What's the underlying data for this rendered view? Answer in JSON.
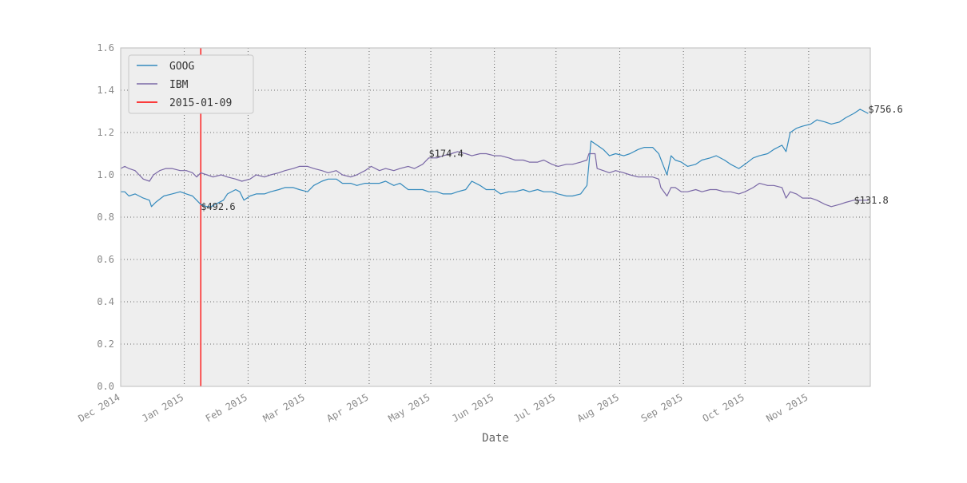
{
  "chart_data": {
    "type": "line",
    "title": "",
    "xlabel": "Date",
    "ylabel": "",
    "ylim": [
      0.0,
      1.6
    ],
    "xlim": [
      "2014-12-01",
      "2015-12-01"
    ],
    "grid": true,
    "legend_position": "top-left",
    "yticks": [
      "0.0",
      "0.2",
      "0.4",
      "0.6",
      "0.8",
      "1.0",
      "1.2",
      "1.4",
      "1.6"
    ],
    "xticks": [
      {
        "date": "2014-12-01",
        "label": "Dec 2014"
      },
      {
        "date": "2015-01-01",
        "label": "Jan 2015"
      },
      {
        "date": "2015-02-01",
        "label": "Feb 2015"
      },
      {
        "date": "2015-03-01",
        "label": "Mar 2015"
      },
      {
        "date": "2015-04-01",
        "label": "Apr 2015"
      },
      {
        "date": "2015-05-01",
        "label": "May 2015"
      },
      {
        "date": "2015-06-01",
        "label": "Jun 2015"
      },
      {
        "date": "2015-07-01",
        "label": "Jul 2015"
      },
      {
        "date": "2015-08-01",
        "label": "Aug 2015"
      },
      {
        "date": "2015-09-01",
        "label": "Sep 2015"
      },
      {
        "date": "2015-10-01",
        "label": "Oct 2015"
      },
      {
        "date": "2015-11-01",
        "label": "Nov 2015"
      }
    ],
    "series": [
      {
        "name": "GOOG",
        "color": "#348abd",
        "points": [
          [
            "2014-12-01",
            0.92
          ],
          [
            "2014-12-03",
            0.92
          ],
          [
            "2014-12-05",
            0.9
          ],
          [
            "2014-12-08",
            0.91
          ],
          [
            "2014-12-10",
            0.9
          ],
          [
            "2014-12-12",
            0.89
          ],
          [
            "2014-12-15",
            0.88
          ],
          [
            "2014-12-16",
            0.85
          ],
          [
            "2014-12-18",
            0.87
          ],
          [
            "2014-12-22",
            0.9
          ],
          [
            "2014-12-26",
            0.91
          ],
          [
            "2014-12-30",
            0.92
          ],
          [
            "2015-01-02",
            0.91
          ],
          [
            "2015-01-05",
            0.9
          ],
          [
            "2015-01-07",
            0.88
          ],
          [
            "2015-01-09",
            0.86
          ],
          [
            "2015-01-12",
            0.85
          ],
          [
            "2015-01-14",
            0.85
          ],
          [
            "2015-01-16",
            0.86
          ],
          [
            "2015-01-20",
            0.88
          ],
          [
            "2015-01-22",
            0.91
          ],
          [
            "2015-01-26",
            0.93
          ],
          [
            "2015-01-28",
            0.92
          ],
          [
            "2015-01-30",
            0.88
          ],
          [
            "2015-02-02",
            0.9
          ],
          [
            "2015-02-05",
            0.91
          ],
          [
            "2015-02-09",
            0.91
          ],
          [
            "2015-02-12",
            0.92
          ],
          [
            "2015-02-16",
            0.93
          ],
          [
            "2015-02-19",
            0.94
          ],
          [
            "2015-02-23",
            0.94
          ],
          [
            "2015-02-26",
            0.93
          ],
          [
            "2015-03-02",
            0.92
          ],
          [
            "2015-03-05",
            0.95
          ],
          [
            "2015-03-09",
            0.97
          ],
          [
            "2015-03-12",
            0.98
          ],
          [
            "2015-03-16",
            0.98
          ],
          [
            "2015-03-19",
            0.96
          ],
          [
            "2015-03-23",
            0.96
          ],
          [
            "2015-03-26",
            0.95
          ],
          [
            "2015-03-30",
            0.96
          ],
          [
            "2015-04-02",
            0.96
          ],
          [
            "2015-04-06",
            0.96
          ],
          [
            "2015-04-09",
            0.97
          ],
          [
            "2015-04-13",
            0.95
          ],
          [
            "2015-04-16",
            0.96
          ],
          [
            "2015-04-20",
            0.93
          ],
          [
            "2015-04-23",
            0.93
          ],
          [
            "2015-04-27",
            0.93
          ],
          [
            "2015-04-30",
            0.92
          ],
          [
            "2015-05-04",
            0.92
          ],
          [
            "2015-05-07",
            0.91
          ],
          [
            "2015-05-11",
            0.91
          ],
          [
            "2015-05-14",
            0.92
          ],
          [
            "2015-05-18",
            0.93
          ],
          [
            "2015-05-21",
            0.97
          ],
          [
            "2015-05-25",
            0.95
          ],
          [
            "2015-05-28",
            0.93
          ],
          [
            "2015-06-01",
            0.93
          ],
          [
            "2015-06-04",
            0.91
          ],
          [
            "2015-06-08",
            0.92
          ],
          [
            "2015-06-11",
            0.92
          ],
          [
            "2015-06-15",
            0.93
          ],
          [
            "2015-06-18",
            0.92
          ],
          [
            "2015-06-22",
            0.93
          ],
          [
            "2015-06-25",
            0.92
          ],
          [
            "2015-06-29",
            0.92
          ],
          [
            "2015-07-02",
            0.91
          ],
          [
            "2015-07-06",
            0.9
          ],
          [
            "2015-07-09",
            0.9
          ],
          [
            "2015-07-13",
            0.91
          ],
          [
            "2015-07-16",
            0.95
          ],
          [
            "2015-07-17",
            1.05
          ],
          [
            "2015-07-18",
            1.16
          ],
          [
            "2015-07-21",
            1.14
          ],
          [
            "2015-07-24",
            1.12
          ],
          [
            "2015-07-27",
            1.09
          ],
          [
            "2015-07-30",
            1.1
          ],
          [
            "2015-08-03",
            1.09
          ],
          [
            "2015-08-06",
            1.1
          ],
          [
            "2015-08-10",
            1.12
          ],
          [
            "2015-08-13",
            1.13
          ],
          [
            "2015-08-17",
            1.13
          ],
          [
            "2015-08-20",
            1.1
          ],
          [
            "2015-08-22",
            1.05
          ],
          [
            "2015-08-24",
            1.0
          ],
          [
            "2015-08-26",
            1.09
          ],
          [
            "2015-08-28",
            1.07
          ],
          [
            "2015-08-31",
            1.06
          ],
          [
            "2015-09-03",
            1.04
          ],
          [
            "2015-09-07",
            1.05
          ],
          [
            "2015-09-10",
            1.07
          ],
          [
            "2015-09-14",
            1.08
          ],
          [
            "2015-09-17",
            1.09
          ],
          [
            "2015-09-21",
            1.07
          ],
          [
            "2015-09-24",
            1.05
          ],
          [
            "2015-09-28",
            1.03
          ],
          [
            "2015-10-01",
            1.05
          ],
          [
            "2015-10-05",
            1.08
          ],
          [
            "2015-10-08",
            1.09
          ],
          [
            "2015-10-12",
            1.1
          ],
          [
            "2015-10-15",
            1.12
          ],
          [
            "2015-10-19",
            1.14
          ],
          [
            "2015-10-21",
            1.11
          ],
          [
            "2015-10-23",
            1.2
          ],
          [
            "2015-10-26",
            1.22
          ],
          [
            "2015-10-29",
            1.23
          ],
          [
            "2015-11-02",
            1.24
          ],
          [
            "2015-11-05",
            1.26
          ],
          [
            "2015-11-09",
            1.25
          ],
          [
            "2015-11-12",
            1.24
          ],
          [
            "2015-11-16",
            1.25
          ],
          [
            "2015-11-19",
            1.27
          ],
          [
            "2015-11-23",
            1.29
          ],
          [
            "2015-11-26",
            1.31
          ],
          [
            "2015-11-30",
            1.29
          ]
        ]
      },
      {
        "name": "IBM",
        "color": "#7a68a6",
        "points": [
          [
            "2014-12-01",
            1.03
          ],
          [
            "2014-12-03",
            1.04
          ],
          [
            "2014-12-05",
            1.03
          ],
          [
            "2014-12-08",
            1.02
          ],
          [
            "2014-12-10",
            1.0
          ],
          [
            "2014-12-12",
            0.98
          ],
          [
            "2014-12-15",
            0.97
          ],
          [
            "2014-12-17",
            1.0
          ],
          [
            "2014-12-20",
            1.02
          ],
          [
            "2014-12-23",
            1.03
          ],
          [
            "2014-12-26",
            1.03
          ],
          [
            "2014-12-30",
            1.02
          ],
          [
            "2015-01-02",
            1.02
          ],
          [
            "2015-01-05",
            1.01
          ],
          [
            "2015-01-07",
            0.99
          ],
          [
            "2015-01-09",
            1.01
          ],
          [
            "2015-01-12",
            1.0
          ],
          [
            "2015-01-15",
            0.99
          ],
          [
            "2015-01-19",
            1.0
          ],
          [
            "2015-01-22",
            0.99
          ],
          [
            "2015-01-26",
            0.98
          ],
          [
            "2015-01-29",
            0.97
          ],
          [
            "2015-02-02",
            0.98
          ],
          [
            "2015-02-05",
            1.0
          ],
          [
            "2015-02-09",
            0.99
          ],
          [
            "2015-02-12",
            1.0
          ],
          [
            "2015-02-16",
            1.01
          ],
          [
            "2015-02-19",
            1.02
          ],
          [
            "2015-02-23",
            1.03
          ],
          [
            "2015-02-26",
            1.04
          ],
          [
            "2015-03-02",
            1.04
          ],
          [
            "2015-03-05",
            1.03
          ],
          [
            "2015-03-09",
            1.02
          ],
          [
            "2015-03-12",
            1.01
          ],
          [
            "2015-03-16",
            1.02
          ],
          [
            "2015-03-19",
            1.0
          ],
          [
            "2015-03-23",
            0.99
          ],
          [
            "2015-03-26",
            1.0
          ],
          [
            "2015-03-30",
            1.02
          ],
          [
            "2015-04-02",
            1.04
          ],
          [
            "2015-04-06",
            1.02
          ],
          [
            "2015-04-09",
            1.03
          ],
          [
            "2015-04-13",
            1.02
          ],
          [
            "2015-04-16",
            1.03
          ],
          [
            "2015-04-20",
            1.04
          ],
          [
            "2015-04-23",
            1.03
          ],
          [
            "2015-04-27",
            1.05
          ],
          [
            "2015-04-30",
            1.08
          ],
          [
            "2015-05-04",
            1.08
          ],
          [
            "2015-05-07",
            1.09
          ],
          [
            "2015-05-11",
            1.1
          ],
          [
            "2015-05-14",
            1.11
          ],
          [
            "2015-05-18",
            1.1
          ],
          [
            "2015-05-21",
            1.09
          ],
          [
            "2015-05-25",
            1.1
          ],
          [
            "2015-05-28",
            1.1
          ],
          [
            "2015-06-01",
            1.09
          ],
          [
            "2015-06-04",
            1.09
          ],
          [
            "2015-06-08",
            1.08
          ],
          [
            "2015-06-11",
            1.07
          ],
          [
            "2015-06-15",
            1.07
          ],
          [
            "2015-06-18",
            1.06
          ],
          [
            "2015-06-22",
            1.06
          ],
          [
            "2015-06-25",
            1.07
          ],
          [
            "2015-06-29",
            1.05
          ],
          [
            "2015-07-02",
            1.04
          ],
          [
            "2015-07-06",
            1.05
          ],
          [
            "2015-07-09",
            1.05
          ],
          [
            "2015-07-13",
            1.06
          ],
          [
            "2015-07-16",
            1.07
          ],
          [
            "2015-07-17",
            1.1
          ],
          [
            "2015-07-20",
            1.1
          ],
          [
            "2015-07-21",
            1.03
          ],
          [
            "2015-07-24",
            1.02
          ],
          [
            "2015-07-27",
            1.01
          ],
          [
            "2015-07-30",
            1.02
          ],
          [
            "2015-08-03",
            1.01
          ],
          [
            "2015-08-06",
            1.0
          ],
          [
            "2015-08-10",
            0.99
          ],
          [
            "2015-08-13",
            0.99
          ],
          [
            "2015-08-17",
            0.99
          ],
          [
            "2015-08-20",
            0.98
          ],
          [
            "2015-08-21",
            0.94
          ],
          [
            "2015-08-24",
            0.9
          ],
          [
            "2015-08-26",
            0.94
          ],
          [
            "2015-08-28",
            0.94
          ],
          [
            "2015-08-31",
            0.92
          ],
          [
            "2015-09-03",
            0.92
          ],
          [
            "2015-09-07",
            0.93
          ],
          [
            "2015-09-10",
            0.92
          ],
          [
            "2015-09-14",
            0.93
          ],
          [
            "2015-09-17",
            0.93
          ],
          [
            "2015-09-21",
            0.92
          ],
          [
            "2015-09-24",
            0.92
          ],
          [
            "2015-09-28",
            0.91
          ],
          [
            "2015-10-01",
            0.92
          ],
          [
            "2015-10-05",
            0.94
          ],
          [
            "2015-10-08",
            0.96
          ],
          [
            "2015-10-12",
            0.95
          ],
          [
            "2015-10-15",
            0.95
          ],
          [
            "2015-10-19",
            0.94
          ],
          [
            "2015-10-21",
            0.89
          ],
          [
            "2015-10-23",
            0.92
          ],
          [
            "2015-10-26",
            0.91
          ],
          [
            "2015-10-29",
            0.89
          ],
          [
            "2015-11-02",
            0.89
          ],
          [
            "2015-11-05",
            0.88
          ],
          [
            "2015-11-09",
            0.86
          ],
          [
            "2015-11-12",
            0.85
          ],
          [
            "2015-11-16",
            0.86
          ],
          [
            "2015-11-19",
            0.87
          ],
          [
            "2015-11-23",
            0.88
          ],
          [
            "2015-11-26",
            0.88
          ],
          [
            "2015-11-30",
            0.88
          ]
        ]
      }
    ],
    "vline": {
      "date": "2015-01-09",
      "label": "2015-01-09",
      "color": "#ff0000"
    },
    "annotations": [
      {
        "text": "$492.6",
        "x": "2015-01-09",
        "y": 0.85
      },
      {
        "text": "$174.4",
        "x": "2015-04-30",
        "y": 1.1
      },
      {
        "text": "$756.6",
        "x": "2015-11-30",
        "y": 1.31
      },
      {
        "text": "$131.8",
        "x": "2015-11-23",
        "y": 0.88
      }
    ]
  }
}
